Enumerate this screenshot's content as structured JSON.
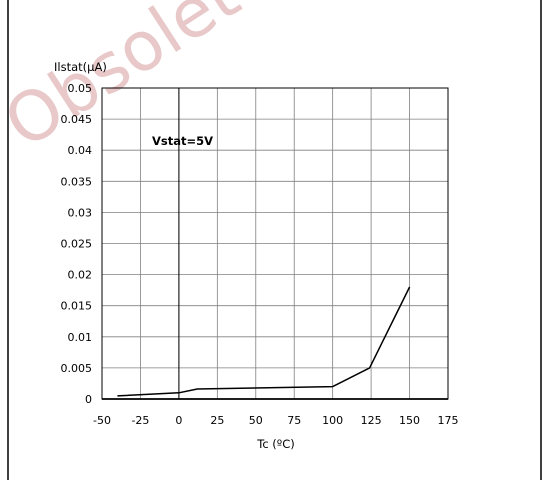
{
  "watermark": "Obsolete P",
  "chart_data": {
    "type": "line",
    "ylabel": "Ilstat(µA)",
    "xlabel": "Tc (ºC)",
    "annotation": "Vstat=5V",
    "xlim": [
      -50,
      175
    ],
    "ylim": [
      0,
      0.05
    ],
    "x_ticks": [
      -50,
      -25,
      0,
      25,
      50,
      75,
      100,
      125,
      150,
      175
    ],
    "y_ticks": [
      0,
      0.005,
      0.01,
      0.015,
      0.02,
      0.025,
      0.03,
      0.035,
      0.04,
      0.045,
      0.05
    ],
    "x_tick_labels": [
      "-50",
      "-25",
      "0",
      "25",
      "50",
      "75",
      "100",
      "125",
      "150",
      "175"
    ],
    "y_tick_labels": [
      "0",
      "0.005",
      "0.01",
      "0.015",
      "0.02",
      "0.025",
      "0.03",
      "0.035",
      "0.04",
      "0.045",
      "0.05"
    ],
    "grid": true,
    "series": [
      {
        "points": [
          [
            -40,
            0.0005
          ],
          [
            0,
            0.001
          ],
          [
            12,
            0.0016
          ],
          [
            100,
            0.002
          ],
          [
            124,
            0.005
          ],
          [
            150,
            0.018
          ]
        ]
      }
    ],
    "colors": {
      "line": "#000000",
      "grid": "#808080",
      "watermark": "#e8c8c8"
    }
  }
}
